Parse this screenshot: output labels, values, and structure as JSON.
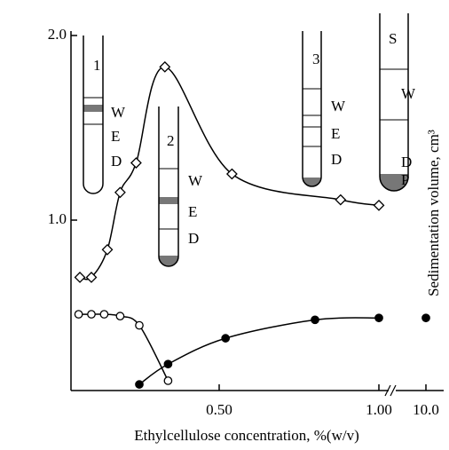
{
  "chart_data": {
    "type": "scatter",
    "x_label": "Ethylcellulose concentration, %(w/v)",
    "y_label": "Sedimentation volume, cm³",
    "xlim": [
      0.036,
      10.5
    ],
    "ylim": [
      0.08,
      2.02
    ],
    "xticks": [
      {
        "value": 0.5,
        "label": "0.50"
      },
      {
        "value": 1.0,
        "label": "1.00"
      },
      {
        "value": 10.0,
        "label": "10.0"
      }
    ],
    "yticks": [
      {
        "value": 1.0,
        "label": "1.0"
      },
      {
        "value": 2.0,
        "label": "2.0"
      }
    ],
    "series": [
      {
        "marker": "diamond",
        "filled": false,
        "color": "#000000",
        "x": [
          0.064,
          0.1,
          0.15,
          0.19,
          0.24,
          0.33,
          0.54,
          0.88,
          1.0
        ],
        "values": [
          0.69,
          0.69,
          0.84,
          1.15,
          1.31,
          1.83,
          1.25,
          1.11,
          1.08
        ]
      },
      {
        "marker": "circle",
        "filled": false,
        "color": "#000000",
        "x": [
          0.06,
          0.1,
          0.14,
          0.19,
          0.25,
          0.34
        ],
        "values": [
          0.49,
          0.49,
          0.49,
          0.48,
          0.43,
          0.13
        ]
      },
      {
        "marker": "circle",
        "filled": true,
        "color": "#000000",
        "x": [
          0.25,
          0.34,
          0.52,
          0.8,
          1.0,
          10.0
        ],
        "values": [
          0.11,
          0.22,
          0.36,
          0.46,
          0.47,
          0.47
        ]
      }
    ],
    "annotations": [
      {
        "number": "1",
        "layers": [
          "W",
          "E",
          "D"
        ]
      },
      {
        "number": "2",
        "layers": [
          "W",
          "E",
          "D"
        ]
      },
      {
        "number": "3",
        "layers": [
          "W",
          "E",
          "D"
        ]
      },
      {
        "number": "S",
        "layers": [
          "W",
          "D",
          "P"
        ]
      }
    ]
  }
}
